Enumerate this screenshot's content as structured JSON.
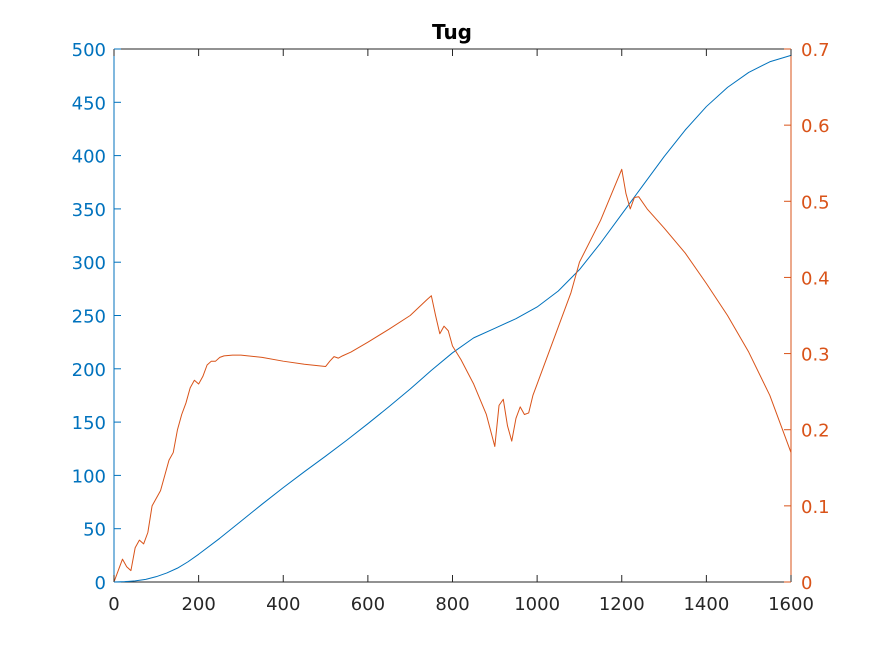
{
  "chart_data": {
    "type": "line",
    "title": "Tug",
    "xlabel": "",
    "ylabel_left": "",
    "ylabel_right": "",
    "xlim": [
      0,
      1600
    ],
    "ylim_left": [
      0,
      500
    ],
    "ylim_right": [
      0,
      0.7
    ],
    "xticks": [
      0,
      200,
      400,
      600,
      800,
      1000,
      1200,
      1400,
      1600
    ],
    "yticks_left": [
      0,
      50,
      100,
      150,
      200,
      250,
      300,
      350,
      400,
      450,
      500
    ],
    "yticks_right": [
      0,
      0.1,
      0.2,
      0.3,
      0.4,
      0.5,
      0.6,
      0.7
    ],
    "grid": false,
    "colors": {
      "left_axis": "#0072BD",
      "right_axis": "#D95319",
      "x_axis": "#262626",
      "title": "#000000"
    },
    "series": [
      {
        "axis": "left",
        "color": "#0072BD",
        "x": [
          0,
          25,
          50,
          75,
          100,
          125,
          150,
          175,
          200,
          250,
          300,
          350,
          400,
          450,
          500,
          550,
          600,
          650,
          700,
          750,
          800,
          850,
          900,
          950,
          1000,
          1050,
          1100,
          1150,
          1200,
          1250,
          1300,
          1350,
          1400,
          1450,
          1500,
          1550,
          1600
        ],
        "values": [
          0,
          0.3,
          1,
          2.5,
          5,
          8.5,
          13,
          19,
          26,
          41,
          57,
          73,
          88.5,
          103.5,
          118,
          133,
          148.5,
          164.5,
          181,
          198.5,
          215,
          229,
          238,
          247,
          258,
          273,
          293,
          318,
          345,
          372,
          399,
          424,
          446,
          464,
          478,
          488,
          494
        ]
      },
      {
        "axis": "right",
        "color": "#D95319",
        "x": [
          0,
          10,
          20,
          30,
          40,
          50,
          60,
          70,
          80,
          90,
          100,
          110,
          120,
          130,
          140,
          150,
          160,
          170,
          180,
          190,
          200,
          210,
          220,
          230,
          240,
          250,
          260,
          280,
          300,
          350,
          400,
          450,
          500,
          510,
          520,
          530,
          540,
          560,
          600,
          650,
          700,
          740,
          750,
          760,
          770,
          780,
          790,
          800,
          820,
          850,
          880,
          900,
          910,
          920,
          930,
          940,
          950,
          960,
          970,
          980,
          990,
          1000,
          1050,
          1080,
          1100,
          1150,
          1200,
          1210,
          1220,
          1230,
          1240,
          1260,
          1300,
          1350,
          1400,
          1450,
          1500,
          1550,
          1600
        ],
        "values": [
          0,
          0.015,
          0.03,
          0.02,
          0.015,
          0.045,
          0.055,
          0.05,
          0.065,
          0.1,
          0.11,
          0.12,
          0.14,
          0.16,
          0.17,
          0.2,
          0.22,
          0.235,
          0.255,
          0.265,
          0.26,
          0.27,
          0.285,
          0.29,
          0.29,
          0.295,
          0.297,
          0.298,
          0.298,
          0.295,
          0.29,
          0.286,
          0.283,
          0.29,
          0.296,
          0.294,
          0.297,
          0.302,
          0.315,
          0.332,
          0.35,
          0.371,
          0.376,
          0.35,
          0.326,
          0.336,
          0.33,
          0.31,
          0.292,
          0.26,
          0.22,
          0.178,
          0.232,
          0.24,
          0.205,
          0.185,
          0.215,
          0.23,
          0.22,
          0.222,
          0.245,
          0.26,
          0.335,
          0.38,
          0.42,
          0.475,
          0.542,
          0.51,
          0.49,
          0.505,
          0.506,
          0.49,
          0.465,
          0.432,
          0.392,
          0.35,
          0.302,
          0.245,
          0.17
        ]
      }
    ]
  }
}
